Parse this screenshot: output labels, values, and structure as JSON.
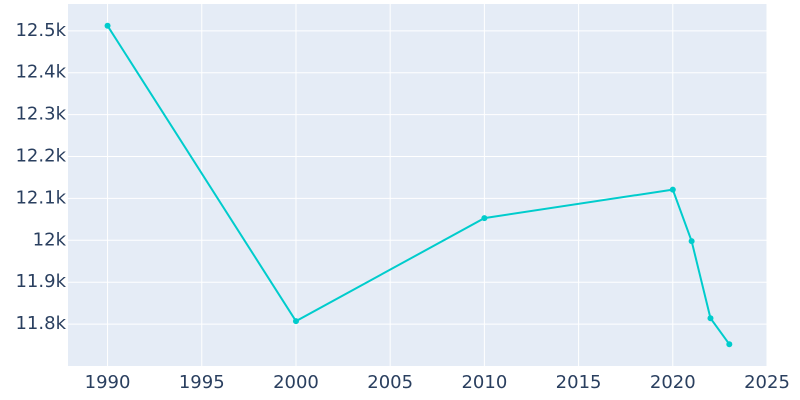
{
  "chart_data": {
    "type": "line",
    "x": [
      1990,
      2000,
      2010,
      2020,
      2021,
      2022,
      2023
    ],
    "series": [
      {
        "color": "#00cccc",
        "values": [
          12512,
          11807,
          12053,
          12121,
          11998,
          11814,
          11752
        ]
      }
    ],
    "xlim": [
      1987.9,
      2025
    ],
    "xticks": [
      1990,
      1995,
      2000,
      2005,
      2010,
      2015,
      2020,
      2025
    ],
    "ylim": [
      11700,
      12564
    ],
    "yticks": [
      {
        "value": 11800,
        "label": "11.8k"
      },
      {
        "value": 11900,
        "label": "11.9k"
      },
      {
        "value": 12000,
        "label": "12k"
      },
      {
        "value": 12100,
        "label": "12.1k"
      },
      {
        "value": 12200,
        "label": "12.2k"
      },
      {
        "value": 12300,
        "label": "12.3k"
      },
      {
        "value": 12400,
        "label": "12.4k"
      },
      {
        "value": 12500,
        "label": "12.5k"
      }
    ],
    "grid": true,
    "background": "#e5ecf6"
  }
}
